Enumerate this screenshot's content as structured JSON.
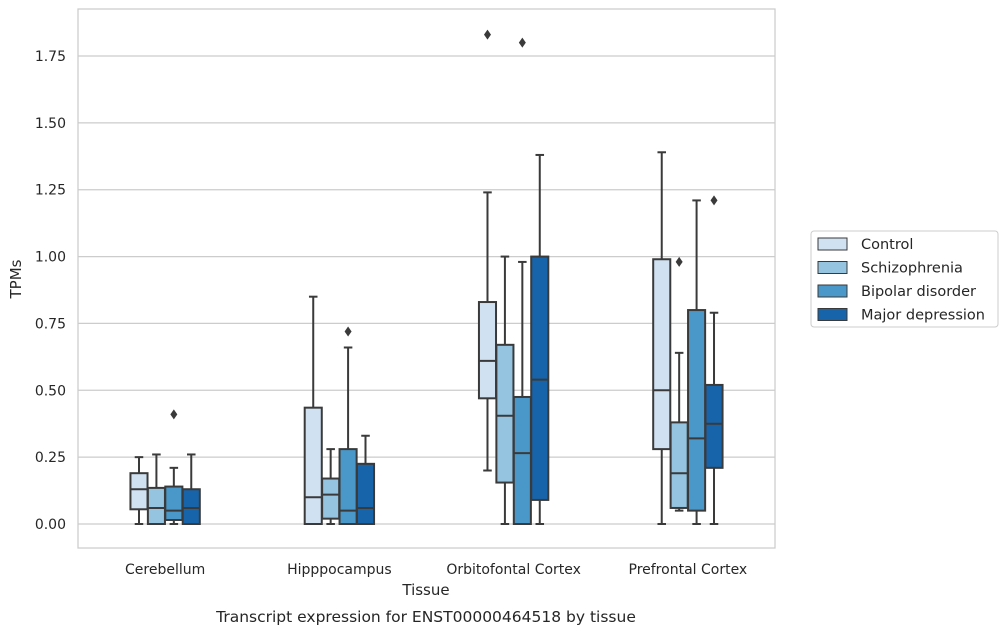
{
  "chart_data": {
    "type": "box",
    "xlabel": "Tissue",
    "ylabel": "TPMs",
    "caption": "Transcript expression for ENST00000464518 by tissue",
    "ylim": [
      -0.09,
      1.93
    ],
    "yticks": [
      "0.00",
      "0.25",
      "0.50",
      "0.75",
      "1.00",
      "1.25",
      "1.50",
      "1.75"
    ],
    "grid": "horizontal",
    "legend_position": "right",
    "categories": [
      "Cerebellum",
      "Hipppocampus",
      "Orbitofontal Cortex",
      "Prefrontal Cortex"
    ],
    "series": [
      {
        "name": "Control",
        "color": "#d0e1f2",
        "boxes": [
          {
            "min": 0.0,
            "q1": 0.055,
            "median": 0.13,
            "q3": 0.19,
            "max": 0.25,
            "outliers": []
          },
          {
            "min": 0.0,
            "q1": 0.0,
            "median": 0.1,
            "q3": 0.435,
            "max": 0.85,
            "outliers": []
          },
          {
            "min": 0.2,
            "q1": 0.47,
            "median": 0.61,
            "q3": 0.83,
            "max": 1.24,
            "outliers": [
              1.83
            ]
          },
          {
            "min": 0.0,
            "q1": 0.28,
            "median": 0.5,
            "q3": 0.99,
            "max": 1.39,
            "outliers": []
          }
        ]
      },
      {
        "name": "Schizophrenia",
        "color": "#94c4df",
        "boxes": [
          {
            "min": 0.0,
            "q1": 0.0,
            "median": 0.06,
            "q3": 0.135,
            "max": 0.26,
            "outliers": []
          },
          {
            "min": 0.0,
            "q1": 0.02,
            "median": 0.11,
            "q3": 0.17,
            "max": 0.28,
            "outliers": []
          },
          {
            "min": 0.0,
            "q1": 0.155,
            "median": 0.405,
            "q3": 0.67,
            "max": 1.0,
            "outliers": []
          },
          {
            "min": 0.05,
            "q1": 0.06,
            "median": 0.19,
            "q3": 0.38,
            "max": 0.64,
            "outliers": [
              0.98
            ]
          }
        ]
      },
      {
        "name": "Bipolar disorder",
        "color": "#4a98c9",
        "boxes": [
          {
            "min": 0.0,
            "q1": 0.015,
            "median": 0.05,
            "q3": 0.14,
            "max": 0.21,
            "outliers": [
              0.41
            ]
          },
          {
            "min": 0.0,
            "q1": 0.0,
            "median": 0.05,
            "q3": 0.28,
            "max": 0.66,
            "outliers": [
              0.72
            ]
          },
          {
            "min": 0.0,
            "q1": 0.0,
            "median": 0.265,
            "q3": 0.475,
            "max": 0.98,
            "outliers": [
              1.8
            ]
          },
          {
            "min": 0.0,
            "q1": 0.05,
            "median": 0.32,
            "q3": 0.8,
            "max": 1.21,
            "outliers": []
          }
        ]
      },
      {
        "name": "Major depression",
        "color": "#1764ab",
        "boxes": [
          {
            "min": 0.0,
            "q1": 0.0,
            "median": 0.06,
            "q3": 0.13,
            "max": 0.26,
            "outliers": []
          },
          {
            "min": 0.0,
            "q1": 0.0,
            "median": 0.06,
            "q3": 0.225,
            "max": 0.33,
            "outliers": []
          },
          {
            "min": 0.0,
            "q1": 0.09,
            "median": 0.54,
            "q3": 1.0,
            "max": 1.38,
            "outliers": []
          },
          {
            "min": 0.0,
            "q1": 0.21,
            "median": 0.375,
            "q3": 0.52,
            "max": 0.79,
            "outliers": [
              1.21
            ]
          }
        ]
      }
    ]
  }
}
